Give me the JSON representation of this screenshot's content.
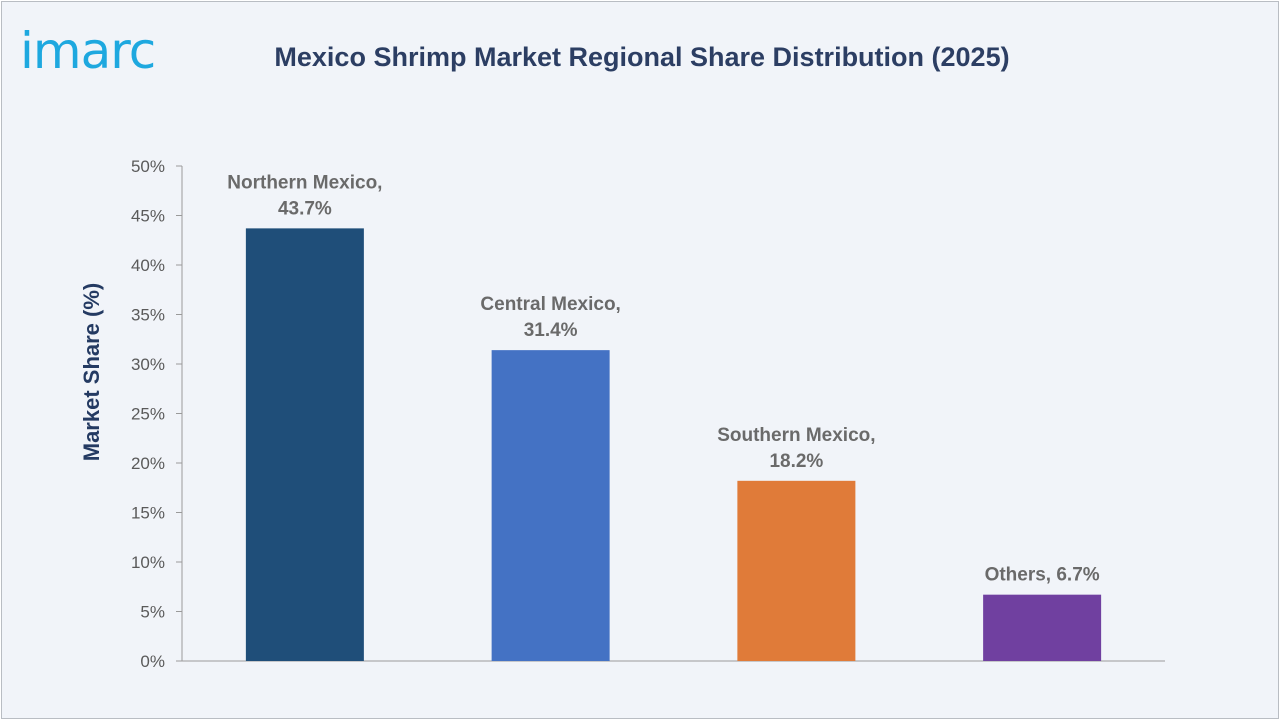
{
  "logo_text": "imarc",
  "chart_data": {
    "type": "bar",
    "title": "Mexico Shrimp Market Regional Share Distribution (2025)",
    "xlabel": "",
    "ylabel": "Market Share (%)",
    "ylim": [
      0,
      50
    ],
    "yticks": [
      0,
      5,
      10,
      15,
      20,
      25,
      30,
      35,
      40,
      45,
      50
    ],
    "ytick_labels": [
      "0%",
      "5%",
      "10%",
      "15%",
      "20%",
      "25%",
      "30%",
      "35%",
      "40%",
      "45%",
      "50%"
    ],
    "categories": [
      "Northern Mexico",
      "Central Mexico",
      "Southern Mexico",
      "Others"
    ],
    "values": [
      43.7,
      31.4,
      18.2,
      6.7
    ],
    "data_labels": [
      [
        "Northern Mexico,",
        "43.7%"
      ],
      [
        "Central Mexico,",
        "31.4%"
      ],
      [
        "Southern Mexico,",
        "18.2%"
      ],
      [
        "Others, 6.7%"
      ]
    ],
    "colors": [
      "#1f4e79",
      "#4472c4",
      "#e07b39",
      "#7040a0"
    ],
    "grid": false,
    "legend": "none"
  }
}
